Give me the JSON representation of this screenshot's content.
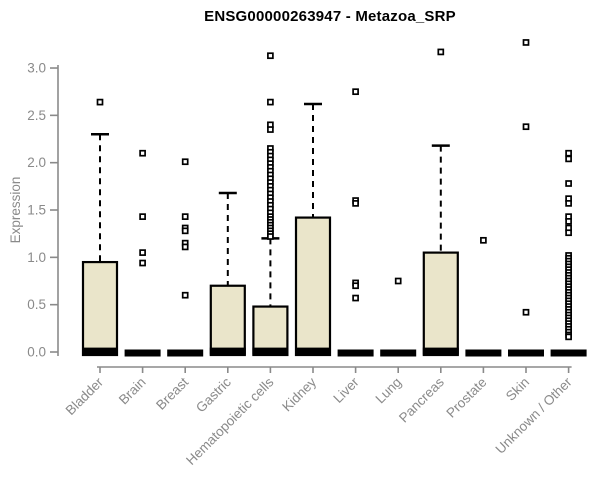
{
  "title": "ENSG00000263947 - Metazoa_SRP",
  "chart_data": {
    "type": "boxplot",
    "title": "ENSG00000263947 - Metazoa_SRP",
    "xlabel": "",
    "ylabel": "Expression",
    "yticks": [
      "0.0",
      "0.5",
      "1.0",
      "1.5",
      "2.0",
      "2.5",
      "3.0"
    ],
    "ylim": [
      0.0,
      3.3
    ],
    "grid": false,
    "legend": "none",
    "categories": [
      "Bladder",
      "Brain",
      "Breast",
      "Gastric",
      "Hematopoietic cells",
      "Kidney",
      "Liver",
      "Lung",
      "Pancreas",
      "Prostate",
      "Skin",
      "Unknown / Other"
    ],
    "boxes": [
      {
        "category": "Bladder",
        "q1": 0,
        "median": 0.02,
        "q3": 0.95,
        "whisker_low": 0,
        "whisker_high": 2.3,
        "outliers": [
          2.64
        ]
      },
      {
        "category": "Brain",
        "q1": 0,
        "median": 0,
        "q3": 0.02,
        "whisker_low": 0,
        "whisker_high": 0,
        "outliers": [
          2.1,
          1.43,
          1.05,
          0.94
        ]
      },
      {
        "category": "Breast",
        "q1": 0,
        "median": 0,
        "q3": 0.02,
        "whisker_low": 0,
        "whisker_high": 0,
        "outliers": [
          2.01,
          1.43,
          1.31,
          1.28,
          1.15,
          1.11,
          0.6
        ]
      },
      {
        "category": "Gastric",
        "q1": 0,
        "median": 0.02,
        "q3": 0.7,
        "whisker_low": 0,
        "whisker_high": 1.68,
        "outliers": []
      },
      {
        "category": "Hematopoietic cells",
        "q1": 0,
        "median": 0.02,
        "q3": 0.48,
        "whisker_low": 0,
        "whisker_high": 1.2,
        "outliers": [
          3.13,
          2.64,
          2.4,
          2.35,
          2.15,
          2.11,
          2.07,
          2.03,
          1.99,
          1.95,
          1.91,
          1.87,
          1.83,
          1.79,
          1.75,
          1.71,
          1.67,
          1.63,
          1.59,
          1.55,
          1.51,
          1.47,
          1.43,
          1.4,
          1.37,
          1.34,
          1.31,
          1.28,
          1.25,
          1.22
        ]
      },
      {
        "category": "Kidney",
        "q1": 0,
        "median": 0.02,
        "q3": 1.42,
        "whisker_low": 0,
        "whisker_high": 2.62,
        "outliers": []
      },
      {
        "category": "Liver",
        "q1": 0,
        "median": 0,
        "q3": 0.02,
        "whisker_low": 0,
        "whisker_high": 0,
        "outliers": [
          2.75,
          1.6,
          1.57,
          0.73,
          0.7,
          0.57
        ]
      },
      {
        "category": "Lung",
        "q1": 0,
        "median": 0,
        "q3": 0.02,
        "whisker_low": 0,
        "whisker_high": 0,
        "outliers": [
          0.75
        ]
      },
      {
        "category": "Pancreas",
        "q1": 0,
        "median": 0.02,
        "q3": 1.05,
        "whisker_low": 0,
        "whisker_high": 2.18,
        "outliers": [
          3.17
        ]
      },
      {
        "category": "Prostate",
        "q1": 0,
        "median": 0,
        "q3": 0.02,
        "whisker_low": 0,
        "whisker_high": 0,
        "outliers": [
          1.18
        ]
      },
      {
        "category": "Skin",
        "q1": 0,
        "median": 0,
        "q3": 0.02,
        "whisker_low": 0,
        "whisker_high": 0,
        "outliers": [
          3.27,
          2.38,
          0.42
        ]
      },
      {
        "category": "Unknown / Other",
        "q1": 0,
        "median": 0,
        "q3": 0.02,
        "whisker_low": 0,
        "whisker_high": 0,
        "outliers": [
          2.1,
          2.04,
          1.78,
          1.62,
          1.57,
          1.43,
          1.38,
          1.31,
          1.26,
          1.02,
          0.99,
          0.96,
          0.93,
          0.9,
          0.87,
          0.84,
          0.81,
          0.78,
          0.75,
          0.72,
          0.69,
          0.66,
          0.63,
          0.6,
          0.57,
          0.54,
          0.51,
          0.48,
          0.45,
          0.42,
          0.39,
          0.36,
          0.33,
          0.3,
          0.27,
          0.24,
          0.21,
          0.18,
          0.16
        ]
      }
    ],
    "colors": {
      "box_fill": "#EAE5CA",
      "box_border": "#000000",
      "median": "#000000",
      "whisker": "#000000",
      "outlier_stroke": "#000000",
      "outlier_fill": "#ffffff",
      "axis": "#8a8a8a",
      "tick_label": "#8a8a8a",
      "title": "#000000"
    }
  }
}
